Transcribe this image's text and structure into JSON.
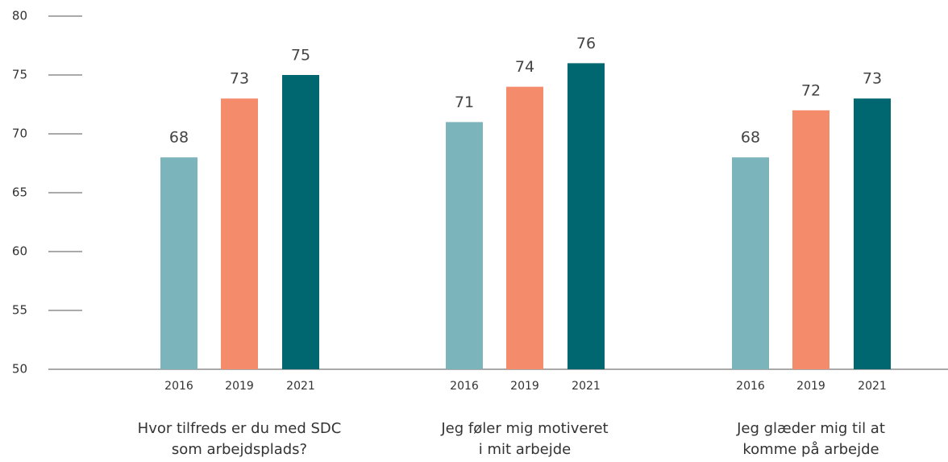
{
  "chart_data": {
    "type": "bar",
    "categories": [
      [
        "Hvor tilfreds er du med SDC",
        "som arbejdsplads?"
      ],
      [
        "Jeg føler mig motiveret",
        "i mit arbejde"
      ],
      [
        "Jeg glæder mig til at",
        "komme på arbejde"
      ]
    ],
    "series": [
      {
        "name": "2016",
        "color": "#7cb4bc",
        "values": [
          68,
          71,
          68
        ]
      },
      {
        "name": "2019",
        "color": "#f48c6c",
        "values": [
          73,
          74,
          72
        ]
      },
      {
        "name": "2021",
        "color": "#006670",
        "values": [
          75,
          76,
          73
        ]
      }
    ],
    "ylim": [
      50,
      80
    ],
    "yticks": [
      50,
      55,
      60,
      65,
      70,
      75,
      80
    ],
    "grid": false
  }
}
